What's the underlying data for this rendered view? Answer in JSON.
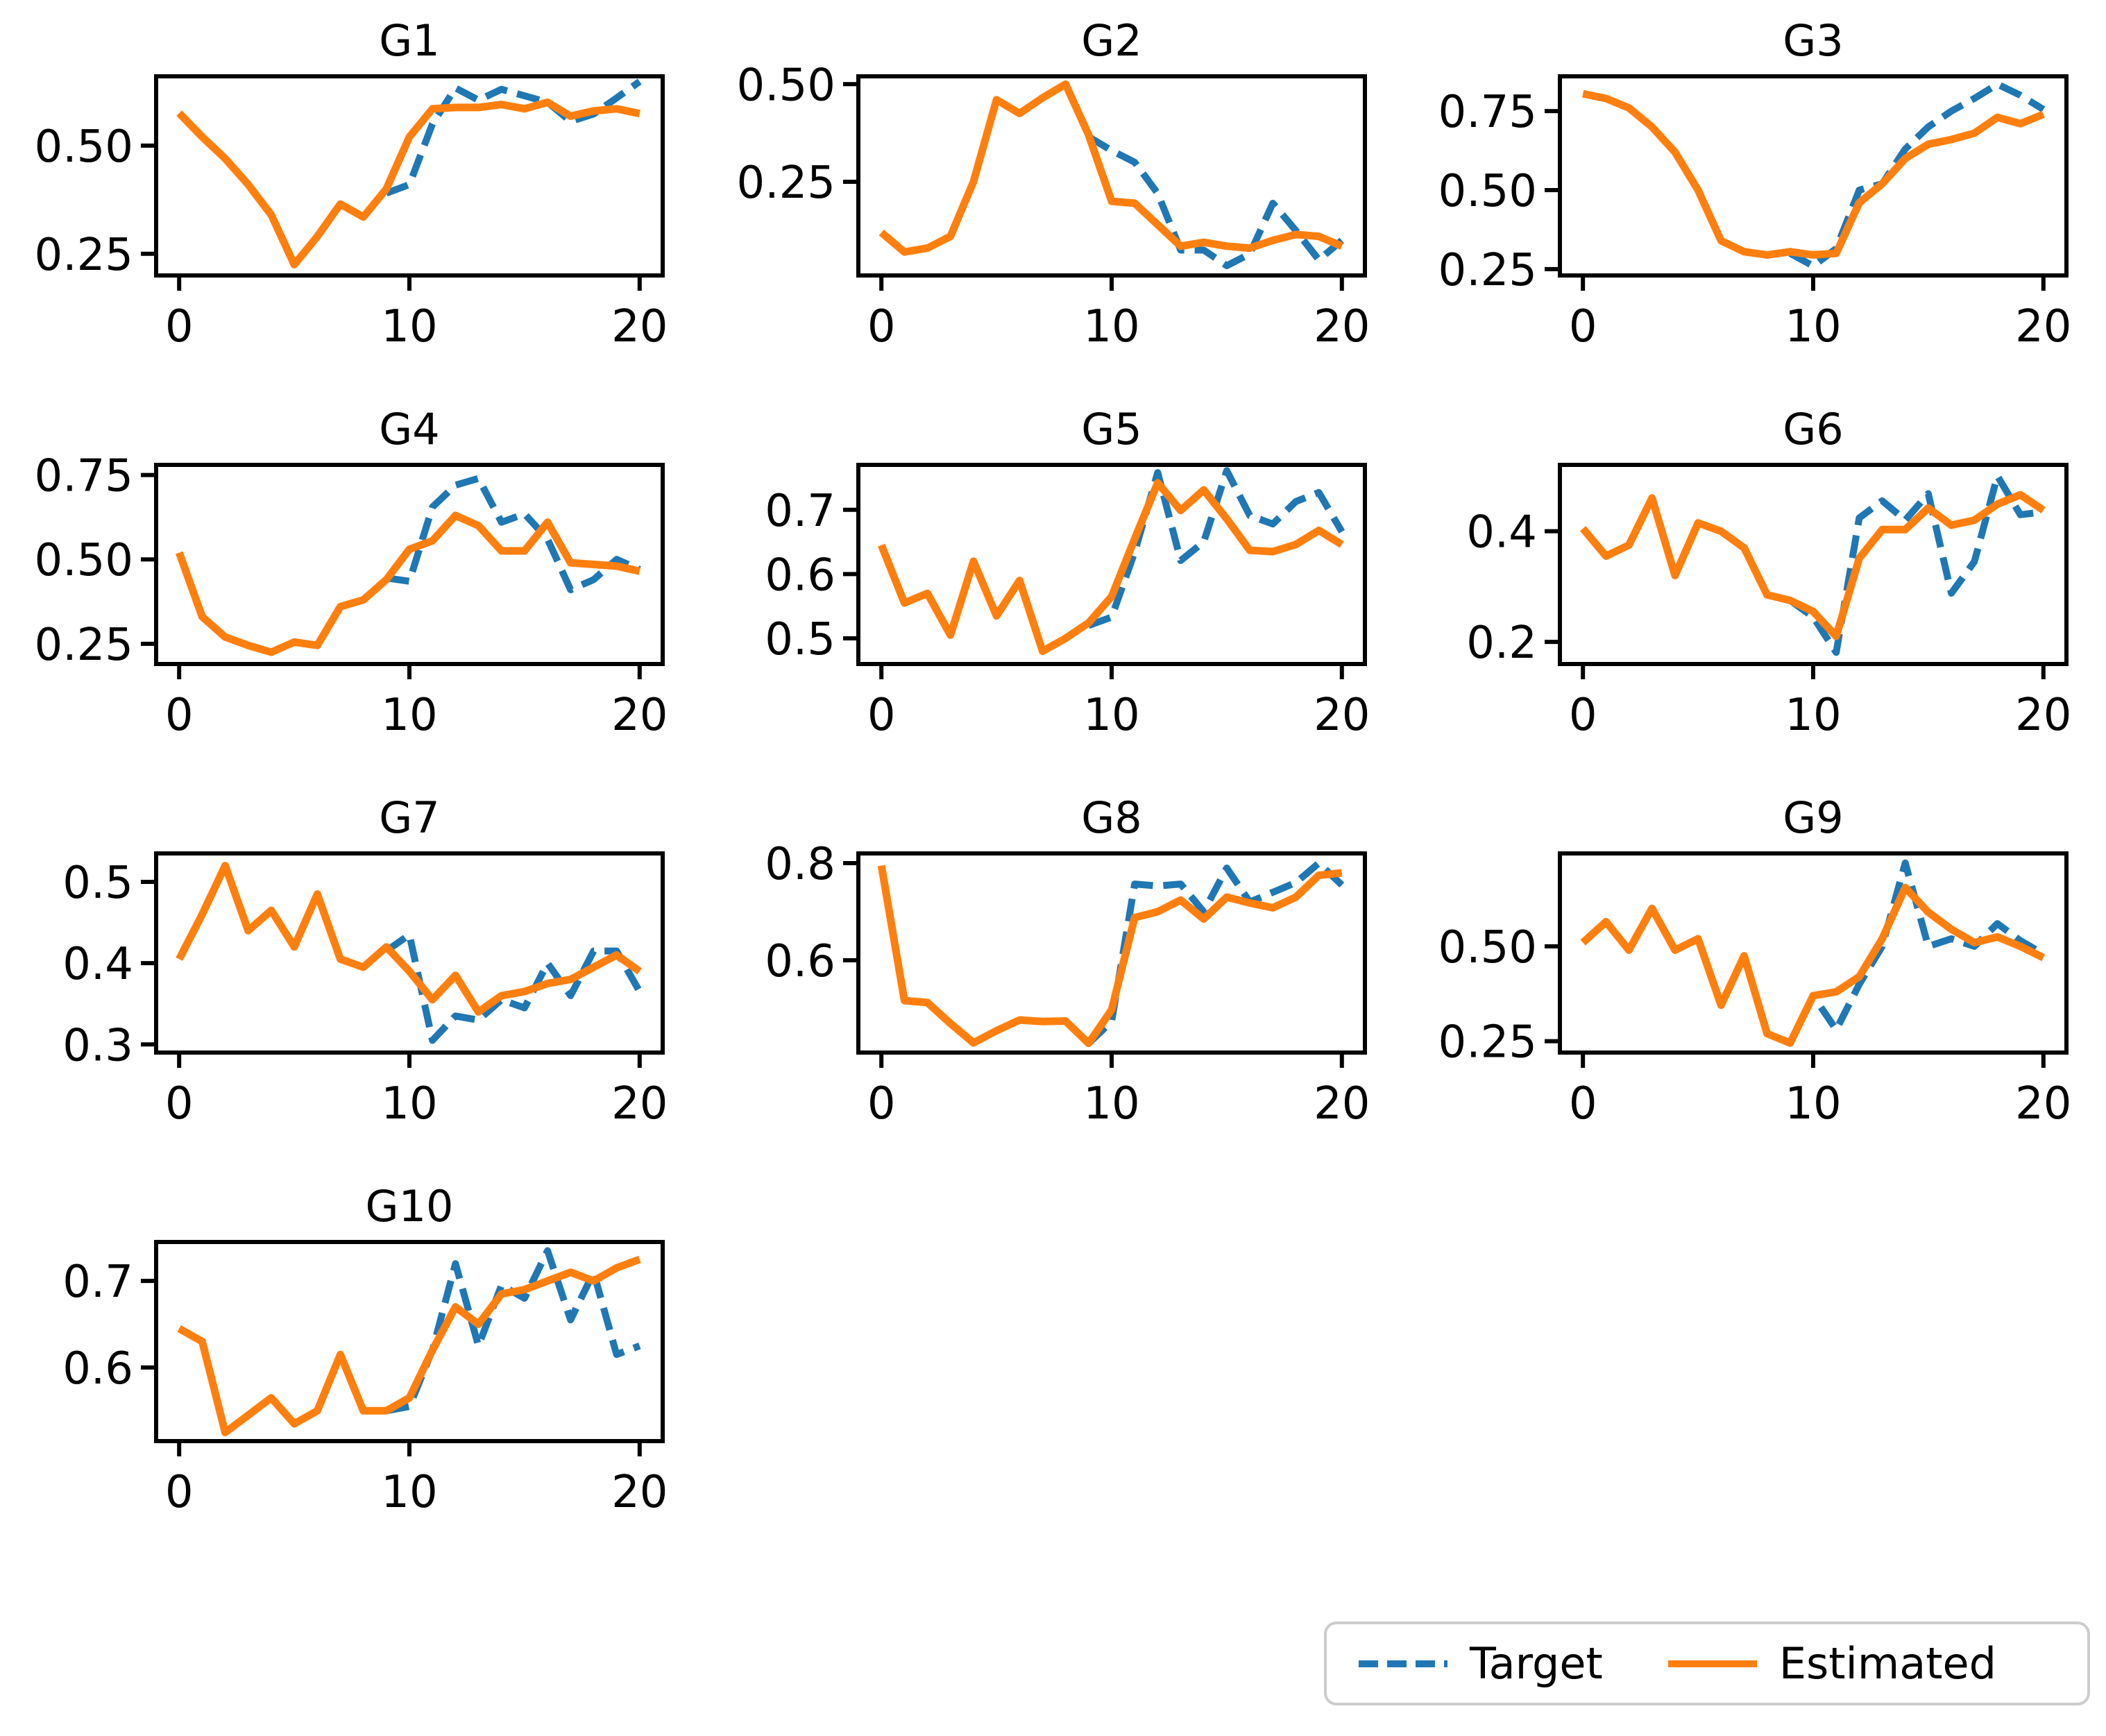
{
  "colors": {
    "target": "#1f77b4",
    "estimated": "#ff7f0e",
    "axes": "#000000",
    "text": "#000000",
    "legend_border": "#cccccc",
    "background": "#ffffff"
  },
  "legend": {
    "items": [
      {
        "label": "Target",
        "series": "target",
        "style": "dashed"
      },
      {
        "label": "Estimated",
        "series": "estimated",
        "style": "solid"
      }
    ]
  },
  "chart_data": [
    {
      "title": "G1",
      "type": "line",
      "x": [
        0,
        1,
        2,
        3,
        4,
        5,
        6,
        7,
        8,
        9,
        10,
        11,
        12,
        13,
        14,
        15,
        16,
        17,
        18,
        19,
        20
      ],
      "xlim": [
        -1,
        21
      ],
      "ylim": [
        0.2,
        0.66
      ],
      "xticks": [
        0,
        10,
        20
      ],
      "xtick_labels": [
        "0",
        "10",
        "20"
      ],
      "yticks": [
        0.25,
        0.5
      ],
      "ytick_labels": [
        "0.25",
        "0.50"
      ],
      "series": [
        {
          "name": "Target",
          "style": "dashed",
          "color_key": "target",
          "values": [
            null,
            null,
            null,
            null,
            null,
            null,
            null,
            null,
            null,
            0.39,
            0.41,
            0.55,
            0.633,
            0.605,
            0.63,
            0.615,
            0.6,
            0.556,
            0.573,
            0.61,
            0.648
          ]
        },
        {
          "name": "Estimated",
          "style": "solid",
          "color_key": "estimated",
          "values": [
            0.575,
            0.52,
            0.47,
            0.41,
            0.34,
            0.225,
            0.29,
            0.365,
            0.335,
            0.4,
            0.52,
            0.585,
            0.588,
            0.588,
            0.595,
            0.585,
            0.6,
            0.568,
            0.58,
            0.585,
            0.574
          ]
        }
      ]
    },
    {
      "title": "G2",
      "type": "line",
      "x": [
        0,
        1,
        2,
        3,
        4,
        5,
        6,
        7,
        8,
        9,
        10,
        11,
        12,
        13,
        14,
        15,
        16,
        17,
        18,
        19,
        20
      ],
      "xlim": [
        -1,
        21
      ],
      "ylim": [
        0.01,
        0.52
      ],
      "xticks": [
        0,
        10,
        20
      ],
      "xtick_labels": [
        "0",
        "10",
        "20"
      ],
      "yticks": [
        0.25,
        0.5
      ],
      "ytick_labels": [
        "0.25",
        "0.50"
      ],
      "series": [
        {
          "name": "Target",
          "style": "dashed",
          "color_key": "target",
          "values": [
            null,
            null,
            null,
            null,
            null,
            null,
            null,
            null,
            null,
            0.365,
            0.33,
            0.3,
            0.22,
            0.075,
            0.075,
            0.035,
            0.065,
            0.195,
            0.125,
            0.05,
            0.1
          ]
        },
        {
          "name": "Estimated",
          "style": "solid",
          "color_key": "estimated",
          "values": [
            0.12,
            0.07,
            0.08,
            0.11,
            0.25,
            0.46,
            0.425,
            0.465,
            0.5,
            0.37,
            0.2,
            0.195,
            0.14,
            0.085,
            0.095,
            0.085,
            0.08,
            0.1,
            0.115,
            0.11,
            0.085
          ]
        }
      ]
    },
    {
      "title": "G3",
      "type": "line",
      "x": [
        0,
        1,
        2,
        3,
        4,
        5,
        6,
        7,
        8,
        9,
        10,
        11,
        12,
        13,
        14,
        15,
        16,
        17,
        18,
        19,
        20
      ],
      "xlim": [
        -1,
        21
      ],
      "ylim": [
        0.23,
        0.86
      ],
      "xticks": [
        0,
        10,
        20
      ],
      "xtick_labels": [
        "0",
        "10",
        "20"
      ],
      "yticks": [
        0.25,
        0.5,
        0.75
      ],
      "ytick_labels": [
        "0.25",
        "0.50",
        "0.75"
      ],
      "series": [
        {
          "name": "Target",
          "style": "dashed",
          "color_key": "target",
          "values": [
            null,
            null,
            null,
            null,
            null,
            null,
            null,
            null,
            null,
            0.3,
            0.26,
            0.315,
            0.5,
            0.52,
            0.63,
            0.7,
            0.75,
            0.79,
            0.835,
            0.8,
            0.755
          ]
        },
        {
          "name": "Estimated",
          "style": "solid",
          "color_key": "estimated",
          "values": [
            0.805,
            0.79,
            0.76,
            0.7,
            0.62,
            0.5,
            0.34,
            0.305,
            0.295,
            0.305,
            0.295,
            0.3,
            0.46,
            0.52,
            0.6,
            0.645,
            0.66,
            0.68,
            0.73,
            0.71,
            0.74
          ]
        }
      ]
    },
    {
      "title": "G4",
      "type": "line",
      "x": [
        0,
        1,
        2,
        3,
        4,
        5,
        6,
        7,
        8,
        9,
        10,
        11,
        12,
        13,
        14,
        15,
        16,
        17,
        18,
        19,
        20
      ],
      "xlim": [
        -1,
        21
      ],
      "ylim": [
        0.19,
        0.78
      ],
      "xticks": [
        0,
        10,
        20
      ],
      "xtick_labels": [
        "0",
        "10",
        "20"
      ],
      "yticks": [
        0.25,
        0.5,
        0.75
      ],
      "ytick_labels": [
        "0.25",
        "0.50",
        "0.75"
      ],
      "series": [
        {
          "name": "Target",
          "style": "dashed",
          "color_key": "target",
          "values": [
            null,
            null,
            null,
            null,
            null,
            null,
            null,
            null,
            null,
            0.445,
            0.435,
            0.655,
            0.72,
            0.74,
            0.61,
            0.635,
            0.56,
            0.41,
            0.44,
            0.5,
            0.47
          ]
        },
        {
          "name": "Estimated",
          "style": "solid",
          "color_key": "estimated",
          "values": [
            0.52,
            0.33,
            0.27,
            0.245,
            0.225,
            0.255,
            0.245,
            0.36,
            0.38,
            0.44,
            0.53,
            0.555,
            0.63,
            0.6,
            0.525,
            0.525,
            0.61,
            0.49,
            0.485,
            0.48,
            0.465
          ]
        }
      ]
    },
    {
      "title": "G5",
      "type": "line",
      "x": [
        0,
        1,
        2,
        3,
        4,
        5,
        6,
        7,
        8,
        9,
        10,
        11,
        12,
        13,
        14,
        15,
        16,
        17,
        18,
        19,
        20
      ],
      "xlim": [
        -1,
        21
      ],
      "ylim": [
        0.46,
        0.77
      ],
      "xticks": [
        0,
        10,
        20
      ],
      "xtick_labels": [
        "0",
        "10",
        "20"
      ],
      "yticks": [
        0.5,
        0.6,
        0.7
      ],
      "ytick_labels": [
        "0.5",
        "0.6",
        "0.7"
      ],
      "series": [
        {
          "name": "Target",
          "style": "dashed",
          "color_key": "target",
          "values": [
            null,
            null,
            null,
            null,
            null,
            null,
            null,
            null,
            null,
            0.52,
            0.533,
            0.634,
            0.758,
            0.621,
            0.65,
            0.761,
            0.691,
            0.678,
            0.713,
            0.727,
            0.666
          ]
        },
        {
          "name": "Estimated",
          "style": "solid",
          "color_key": "estimated",
          "values": [
            0.645,
            0.555,
            0.57,
            0.505,
            0.62,
            0.535,
            0.59,
            0.48,
            0.5,
            0.524,
            0.565,
            0.655,
            0.742,
            0.699,
            0.731,
            0.686,
            0.637,
            0.635,
            0.646,
            0.668,
            0.646
          ]
        }
      ]
    },
    {
      "title": "G6",
      "type": "line",
      "x": [
        0,
        1,
        2,
        3,
        4,
        5,
        6,
        7,
        8,
        9,
        10,
        11,
        12,
        13,
        14,
        15,
        16,
        17,
        18,
        19,
        20
      ],
      "xlim": [
        -1,
        21
      ],
      "ylim": [
        0.16,
        0.52
      ],
      "xticks": [
        0,
        10,
        20
      ],
      "xtick_labels": [
        "0",
        "10",
        "20"
      ],
      "yticks": [
        0.2,
        0.4
      ],
      "ytick_labels": [
        "0.2",
        "0.4"
      ],
      "series": [
        {
          "name": "Target",
          "style": "dashed",
          "color_key": "target",
          "values": [
            null,
            null,
            null,
            null,
            null,
            null,
            null,
            null,
            null,
            0.275,
            0.245,
            0.181,
            0.424,
            0.455,
            0.42,
            0.468,
            0.288,
            0.345,
            0.5,
            0.43,
            0.435
          ]
        },
        {
          "name": "Estimated",
          "style": "solid",
          "color_key": "estimated",
          "values": [
            0.405,
            0.355,
            0.375,
            0.46,
            0.32,
            0.415,
            0.4,
            0.37,
            0.285,
            0.275,
            0.255,
            0.21,
            0.351,
            0.403,
            0.403,
            0.442,
            0.411,
            0.42,
            0.449,
            0.466,
            0.438
          ]
        }
      ]
    },
    {
      "title": "G7",
      "type": "line",
      "x": [
        0,
        1,
        2,
        3,
        4,
        5,
        6,
        7,
        8,
        9,
        10,
        11,
        12,
        13,
        14,
        15,
        16,
        17,
        18,
        19,
        20
      ],
      "xlim": [
        -1,
        21
      ],
      "ylim": [
        0.29,
        0.535
      ],
      "xticks": [
        0,
        10,
        20
      ],
      "xtick_labels": [
        "0",
        "10",
        "20"
      ],
      "yticks": [
        0.3,
        0.4,
        0.5
      ],
      "ytick_labels": [
        "0.3",
        "0.4",
        "0.5"
      ],
      "series": [
        {
          "name": "Target",
          "style": "dashed",
          "color_key": "target",
          "values": [
            null,
            null,
            null,
            null,
            null,
            null,
            null,
            null,
            null,
            0.415,
            0.435,
            0.305,
            0.335,
            0.33,
            0.355,
            0.345,
            0.4,
            0.36,
            0.415,
            0.415,
            0.365
          ]
        },
        {
          "name": "Estimated",
          "style": "solid",
          "color_key": "estimated",
          "values": [
            0.405,
            0.46,
            0.52,
            0.44,
            0.465,
            0.42,
            0.485,
            0.405,
            0.395,
            0.42,
            0.39,
            0.355,
            0.385,
            0.34,
            0.36,
            0.365,
            0.375,
            0.38,
            0.395,
            0.41,
            0.39
          ]
        }
      ]
    },
    {
      "title": "G8",
      "type": "line",
      "x": [
        0,
        1,
        2,
        3,
        4,
        5,
        6,
        7,
        8,
        9,
        10,
        11,
        12,
        13,
        14,
        15,
        16,
        17,
        18,
        19,
        20
      ],
      "xlim": [
        -1,
        21
      ],
      "ylim": [
        0.41,
        0.82
      ],
      "xticks": [
        0,
        10,
        20
      ],
      "xtick_labels": [
        "0",
        "10",
        "20"
      ],
      "yticks": [
        0.6,
        0.8
      ],
      "ytick_labels": [
        "0.6",
        "0.8"
      ],
      "series": [
        {
          "name": "Target",
          "style": "dashed",
          "color_key": "target",
          "values": [
            null,
            null,
            null,
            null,
            null,
            null,
            null,
            null,
            null,
            0.429,
            0.474,
            0.757,
            0.753,
            0.757,
            0.7,
            0.79,
            0.72,
            0.74,
            0.76,
            0.8,
            0.755
          ]
        },
        {
          "name": "Estimated",
          "style": "solid",
          "color_key": "estimated",
          "values": [
            0.795,
            0.517,
            0.513,
            0.47,
            0.43,
            0.455,
            0.477,
            0.474,
            0.475,
            0.429,
            0.498,
            0.688,
            0.7,
            0.724,
            0.685,
            0.73,
            0.718,
            0.708,
            0.73,
            0.775,
            0.78
          ]
        }
      ]
    },
    {
      "title": "G9",
      "type": "line",
      "x": [
        0,
        1,
        2,
        3,
        4,
        5,
        6,
        7,
        8,
        9,
        10,
        11,
        12,
        13,
        14,
        15,
        16,
        17,
        18,
        19,
        20
      ],
      "xlim": [
        -1,
        21
      ],
      "ylim": [
        0.22,
        0.745
      ],
      "xticks": [
        0,
        10,
        20
      ],
      "xtick_labels": [
        "0",
        "10",
        "20"
      ],
      "yticks": [
        0.25,
        0.5
      ],
      "ytick_labels": [
        "0.25",
        "0.50"
      ],
      "series": [
        {
          "name": "Target",
          "style": "dashed",
          "color_key": "target",
          "values": [
            null,
            null,
            null,
            null,
            null,
            null,
            null,
            null,
            null,
            0.245,
            0.37,
            0.28,
            0.4,
            0.5,
            0.72,
            0.5,
            0.52,
            0.5,
            0.56,
            0.515,
            0.48
          ]
        },
        {
          "name": "Estimated",
          "style": "solid",
          "color_key": "estimated",
          "values": [
            0.51,
            0.565,
            0.49,
            0.6,
            0.49,
            0.52,
            0.345,
            0.475,
            0.27,
            0.245,
            0.37,
            0.38,
            0.42,
            0.52,
            0.655,
            0.59,
            0.545,
            0.51,
            0.525,
            0.5,
            0.47
          ]
        }
      ]
    },
    {
      "title": "G10",
      "type": "line",
      "x": [
        0,
        1,
        2,
        3,
        4,
        5,
        6,
        7,
        8,
        9,
        10,
        11,
        12,
        13,
        14,
        15,
        16,
        17,
        18,
        19,
        20
      ],
      "xlim": [
        -1,
        21
      ],
      "ylim": [
        0.515,
        0.745
      ],
      "xticks": [
        0,
        10,
        20
      ],
      "xtick_labels": [
        "0",
        "10",
        "20"
      ],
      "yticks": [
        0.6,
        0.7
      ],
      "ytick_labels": [
        "0.6",
        "0.7"
      ],
      "series": [
        {
          "name": "Target",
          "style": "dashed",
          "color_key": "target",
          "values": [
            null,
            null,
            null,
            null,
            null,
            null,
            null,
            null,
            null,
            0.55,
            0.555,
            0.62,
            0.72,
            0.625,
            0.695,
            0.68,
            0.735,
            0.655,
            0.71,
            0.615,
            0.625
          ]
        },
        {
          "name": "Estimated",
          "style": "solid",
          "color_key": "estimated",
          "values": [
            0.645,
            0.63,
            0.525,
            0.545,
            0.565,
            0.535,
            0.55,
            0.615,
            0.55,
            0.55,
            0.565,
            0.62,
            0.67,
            0.65,
            0.685,
            0.69,
            0.7,
            0.71,
            0.7,
            0.715,
            0.725
          ]
        }
      ]
    }
  ]
}
